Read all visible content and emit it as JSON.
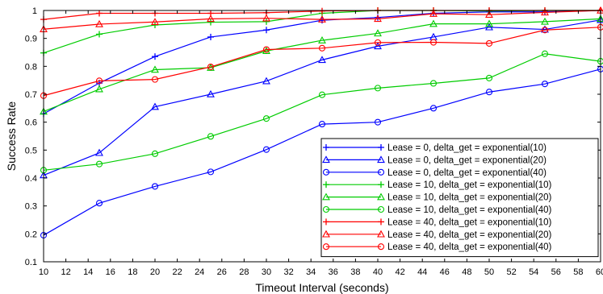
{
  "chart_data": {
    "type": "line",
    "title": "",
    "xlabel": "Timeout Interval (seconds)",
    "ylabel": "Success Rate",
    "xlim": [
      10,
      60
    ],
    "ylim": [
      0.1,
      1
    ],
    "xticks": [
      10,
      12,
      14,
      16,
      18,
      20,
      22,
      24,
      26,
      28,
      30,
      32,
      34,
      36,
      38,
      40,
      42,
      44,
      46,
      48,
      50,
      52,
      54,
      56,
      58,
      60
    ],
    "xtick_labels": [
      "10",
      "12",
      "14",
      "16",
      "18",
      "20",
      "22",
      "24",
      "26",
      "28",
      "30",
      "32",
      "34",
      "36",
      "38",
      "40",
      "42",
      "44",
      "46",
      "48",
      "50",
      "52",
      "54",
      "56",
      "58",
      "60"
    ],
    "yticks": [
      0.1,
      0.2,
      0.3,
      0.4,
      0.5,
      0.6,
      0.7,
      0.8,
      0.9,
      1
    ],
    "ytick_labels": [
      "0.1",
      "0.2",
      "0.3",
      "0.4",
      "0.5",
      "0.6",
      "0.7",
      "0.8",
      "0.9",
      "1"
    ],
    "grid": false,
    "legend_position": "bottom-right",
    "x": [
      10,
      15,
      20,
      25,
      30,
      35,
      40,
      45,
      50,
      55,
      60
    ],
    "series": [
      {
        "name": "Lease = 0, delta_get = exponential(10)",
        "color": "#0000ff",
        "marker": "plus",
        "values": [
          0.63,
          0.74,
          0.835,
          0.905,
          0.93,
          0.965,
          0.975,
          0.99,
          0.995,
          0.995,
          1.0
        ]
      },
      {
        "name": "Lease = 0, delta_get = exponential(20)",
        "color": "#0000ff",
        "marker": "triangle",
        "values": [
          0.41,
          0.49,
          0.655,
          0.7,
          0.747,
          0.823,
          0.872,
          0.905,
          0.94,
          0.932,
          0.966
        ]
      },
      {
        "name": "Lease = 0, delta_get = exponential(40)",
        "color": "#0000ff",
        "marker": "circle",
        "values": [
          0.195,
          0.31,
          0.37,
          0.422,
          0.502,
          0.593,
          0.6,
          0.65,
          0.708,
          0.737,
          0.79
        ]
      },
      {
        "name": "Lease = 10, delta_get = exponential(10)",
        "color": "#00cc00",
        "marker": "plus",
        "values": [
          0.848,
          0.915,
          0.948,
          0.958,
          0.96,
          0.99,
          1.0,
          1.0,
          0.998,
          1.0,
          1.0
        ]
      },
      {
        "name": "Lease = 10, delta_get = exponential(20)",
        "color": "#00cc00",
        "marker": "triangle",
        "values": [
          0.638,
          0.718,
          0.788,
          0.795,
          0.855,
          0.893,
          0.918,
          0.952,
          0.952,
          0.96,
          0.97
        ]
      },
      {
        "name": "Lease = 10, delta_get = exponential(40)",
        "color": "#00cc00",
        "marker": "circle",
        "values": [
          0.428,
          0.45,
          0.487,
          0.549,
          0.613,
          0.698,
          0.722,
          0.739,
          0.758,
          0.845,
          0.818
        ]
      },
      {
        "name": "Lease = 40, delta_get = exponential(10)",
        "color": "#ff0000",
        "marker": "plus",
        "values": [
          0.968,
          0.99,
          0.99,
          0.99,
          0.992,
          0.998,
          1.0,
          1.0,
          1.0,
          1.0,
          1.0
        ]
      },
      {
        "name": "Lease = 40, delta_get = exponential(20)",
        "color": "#ff0000",
        "marker": "triangle",
        "values": [
          0.933,
          0.951,
          0.959,
          0.97,
          0.972,
          0.968,
          0.97,
          0.988,
          0.985,
          0.993,
          1.0
        ]
      },
      {
        "name": "Lease = 40, delta_get = exponential(40)",
        "color": "#ff0000",
        "marker": "circle",
        "values": [
          0.695,
          0.748,
          0.753,
          0.798,
          0.86,
          0.865,
          0.885,
          0.886,
          0.882,
          0.93,
          0.94
        ]
      }
    ]
  }
}
